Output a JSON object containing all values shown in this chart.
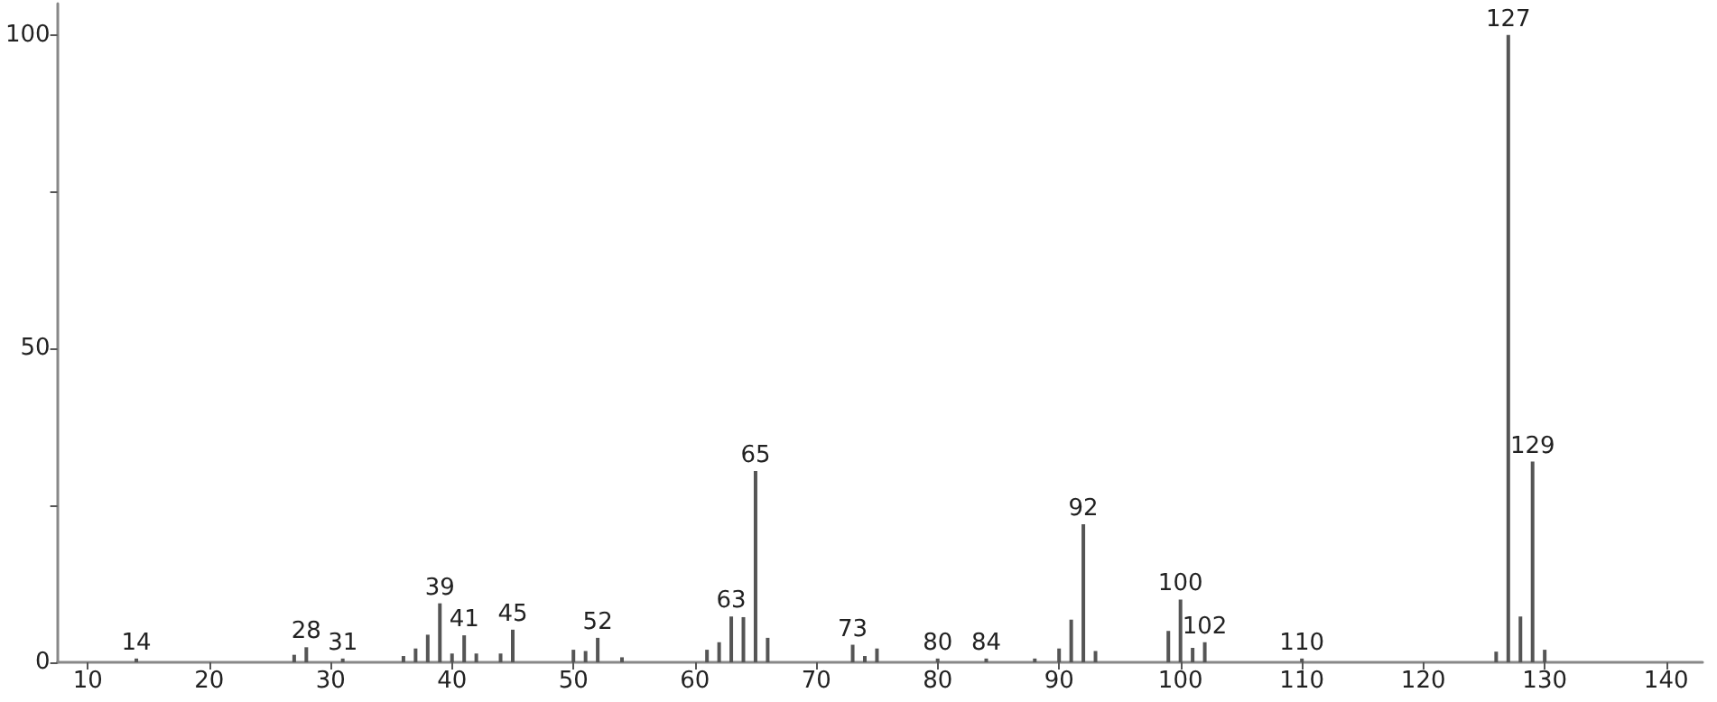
{
  "chart_data": {
    "type": "bar",
    "x": [
      14,
      27,
      28,
      31,
      36,
      37,
      38,
      39,
      40,
      41,
      42,
      44,
      45,
      50,
      51,
      52,
      54,
      61,
      62,
      63,
      64,
      65,
      66,
      73,
      74,
      75,
      80,
      84,
      88,
      90,
      91,
      92,
      93,
      99,
      100,
      101,
      102,
      110,
      126,
      127,
      128,
      129,
      130
    ],
    "values": [
      0.6,
      1.2,
      2.4,
      0.6,
      1,
      2.2,
      4.4,
      9.4,
      1.4,
      4.3,
      1.4,
      1.4,
      5.2,
      2,
      1.8,
      3.9,
      0.8,
      2,
      3.2,
      7.3,
      7.2,
      30.5,
      3.9,
      2.8,
      1,
      2.2,
      0.6,
      0.6,
      0.6,
      2.2,
      6.8,
      22,
      1.8,
      5,
      10,
      2.3,
      3.2,
      0.6,
      1.7,
      100,
      7.3,
      32,
      2
    ],
    "annotations": [
      {
        "text": "14",
        "x": 14,
        "y": 0.6
      },
      {
        "text": "28",
        "x": 28,
        "y": 2.4
      },
      {
        "text": "31",
        "x": 31,
        "y": 0.6
      },
      {
        "text": "39",
        "x": 39,
        "y": 9.4
      },
      {
        "text": "41",
        "x": 41,
        "y": 4.3
      },
      {
        "text": "45",
        "x": 45,
        "y": 5.2
      },
      {
        "text": "52",
        "x": 52,
        "y": 3.9
      },
      {
        "text": "63",
        "x": 63,
        "y": 7.3
      },
      {
        "text": "65",
        "x": 65,
        "y": 30.5
      },
      {
        "text": "73",
        "x": 73,
        "y": 2.8
      },
      {
        "text": "80",
        "x": 80,
        "y": 0.6
      },
      {
        "text": "84",
        "x": 84,
        "y": 0.6
      },
      {
        "text": "92",
        "x": 92,
        "y": 22
      },
      {
        "text": "100",
        "x": 100,
        "y": 10
      },
      {
        "text": "102",
        "x": 102,
        "y": 3.2
      },
      {
        "text": "110",
        "x": 110,
        "y": 0.6
      },
      {
        "text": "127",
        "x": 127,
        "y": 100
      },
      {
        "text": "129",
        "x": 129,
        "y": 32
      }
    ],
    "color": "#555555",
    "xlim": [
      7.5,
      143
    ],
    "xticks": [
      10,
      20,
      30,
      40,
      50,
      60,
      70,
      80,
      90,
      100,
      110,
      120,
      130,
      140
    ],
    "ylim": [
      0,
      105
    ],
    "yticks": [
      0,
      {
        "value": 25,
        "label": null
      },
      50,
      {
        "value": 75,
        "label": null
      },
      100
    ],
    "grid": false
  }
}
